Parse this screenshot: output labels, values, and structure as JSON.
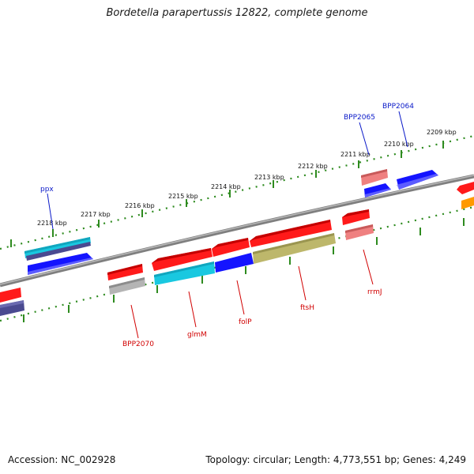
{
  "header": {
    "title": "Bordetella parapertussis 12822, complete genome"
  },
  "footer": {
    "accession": "Accession: NC_002928",
    "stats": "Topology: circular; Length: 4,773,551 bp; Genes: 4,249"
  },
  "ticks": [
    "2209 kbp",
    "2210 kbp",
    "2211 kbp",
    "2212 kbp",
    "2213 kbp",
    "2214 kbp",
    "2215 kbp",
    "2216 kbp",
    "2217 kbp",
    "2218 kbp"
  ],
  "gene_labels": {
    "BPP2064": "BPP2064",
    "BPP2065": "BPP2065",
    "ppx": "ppx",
    "BPP2070": "BPP2070",
    "glmM": "glmM",
    "folP": "folP",
    "ftsH": "ftsH",
    "rrmJ": "rrmJ"
  },
  "colors": {
    "backbone": "#8a8a8a",
    "tick_dots": "#2e8b1f",
    "gene_red": "#ff1a1a",
    "gene_blue": "#1414ff",
    "gene_cyan": "#19c8e0",
    "gene_salmon": "#ef8080",
    "gene_olive": "#bdb76b",
    "gene_gray": "#b4b4b4",
    "gene_slate": "#4a4a90",
    "gene_orange": "#ff9900"
  }
}
